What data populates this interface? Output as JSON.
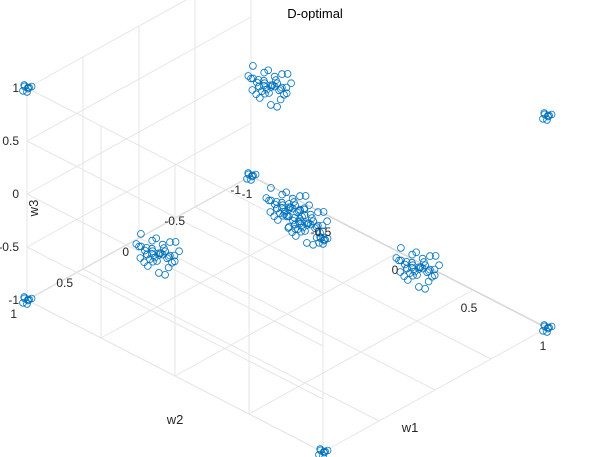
{
  "chart_data": {
    "type": "scatter3d",
    "title": "D-optimal",
    "xlabel": "w1",
    "ylabel": "w2",
    "zlabel": "w3",
    "xlim": [
      -1,
      1
    ],
    "ylim": [
      -1,
      1
    ],
    "zlim": [
      -1,
      1
    ],
    "x_ticks": [
      "-1",
      "-0.5",
      "0",
      "0.5",
      "1"
    ],
    "y_ticks": [
      "-1",
      "-0.5",
      "0",
      "0.5",
      "1"
    ],
    "z_ticks": [
      "-1",
      "-0.5",
      "0",
      "0.5",
      "1"
    ],
    "grid": true,
    "marker": "open-circle",
    "color": "#0072BD",
    "clusters": [
      {
        "x": 1,
        "y": 1,
        "z": 1,
        "spread": "point"
      },
      {
        "x": -1,
        "y": -1,
        "z": 1,
        "spread": "point"
      },
      {
        "x": 1,
        "y": -1,
        "z": 1,
        "spread": "point"
      },
      {
        "x": -1,
        "y": 1,
        "z": 1,
        "spread": "point"
      },
      {
        "x": 1,
        "y": 1,
        "z": -1,
        "spread": "point"
      },
      {
        "x": -1,
        "y": -1,
        "z": -1,
        "spread": "point"
      },
      {
        "x": 1,
        "y": -1,
        "z": -1,
        "spread": "point"
      },
      {
        "x": -1,
        "y": 1,
        "z": -1,
        "spread": "point"
      },
      {
        "x": 0,
        "y": 0,
        "z": 0,
        "spread": "blob"
      },
      {
        "x": 0.5,
        "y": 0.5,
        "z": 0.5,
        "spread": "blob"
      },
      {
        "x": -0.5,
        "y": -0.5,
        "z": 0.5,
        "spread": "blob"
      },
      {
        "x": 0.5,
        "y": -0.5,
        "z": -0.5,
        "spread": "blob"
      },
      {
        "x": -0.5,
        "y": 0.5,
        "z": -0.5,
        "spread": "blob"
      }
    ]
  }
}
